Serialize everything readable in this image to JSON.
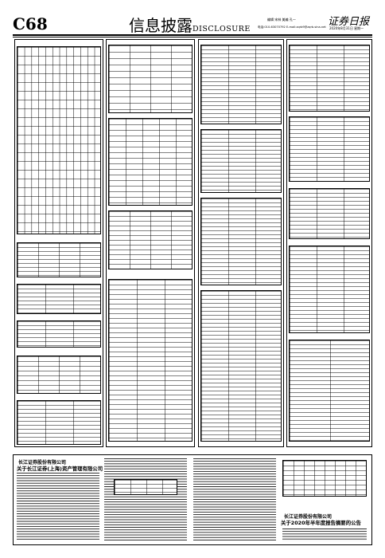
{
  "masthead": {
    "page_number": "C68",
    "section_cn": "信息披露",
    "section_en": "DISCLOSURE",
    "editor_line": "编辑 宋林  美编 孔一",
    "contact_line": "电话:010-63070792  E-mail:zqrb9@zqrb.sina.net",
    "paper_logo": "证券日报",
    "date_line": "2020年8月31日 星期一"
  },
  "bottom_band": {
    "left_company": "长江证券股份有限公司",
    "left_subtitle": "关于长江证券(上海)资产管理有限公司",
    "right_company": "长江证券股份有限公司",
    "right_subtitle": "关于2020年半年度报告摘要的公告"
  }
}
